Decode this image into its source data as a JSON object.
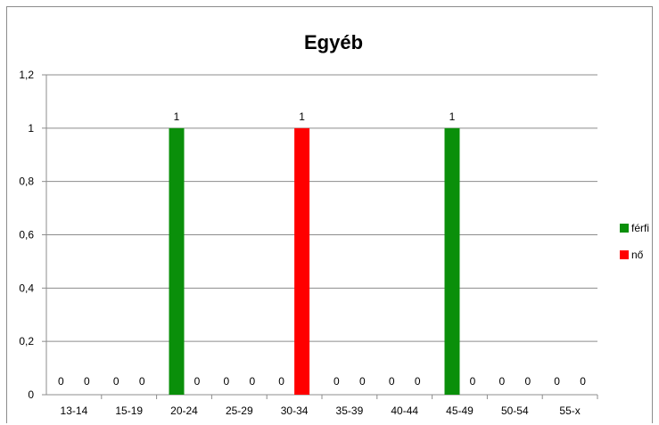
{
  "chart_data": {
    "type": "bar",
    "title": "Egyéb",
    "categories": [
      "13-14",
      "15-19",
      "20-24",
      "25-29",
      "30-34",
      "35-39",
      "40-44",
      "45-49",
      "50-54",
      "55-x"
    ],
    "series": [
      {
        "name": "férfi",
        "color": "#0a8f0a",
        "values": [
          0,
          0,
          1,
          0,
          0,
          0,
          0,
          1,
          0,
          0
        ]
      },
      {
        "name": "nő",
        "color": "#ff0000",
        "values": [
          0,
          0,
          0,
          0,
          1,
          0,
          0,
          0,
          0,
          0
        ]
      }
    ],
    "yticks": [
      "0",
      "0,2",
      "0,4",
      "0,6",
      "0,8",
      "1",
      "1,2"
    ],
    "ylim": [
      0,
      1.2
    ],
    "grid": true,
    "legend_position": "right",
    "data_labels": true
  }
}
